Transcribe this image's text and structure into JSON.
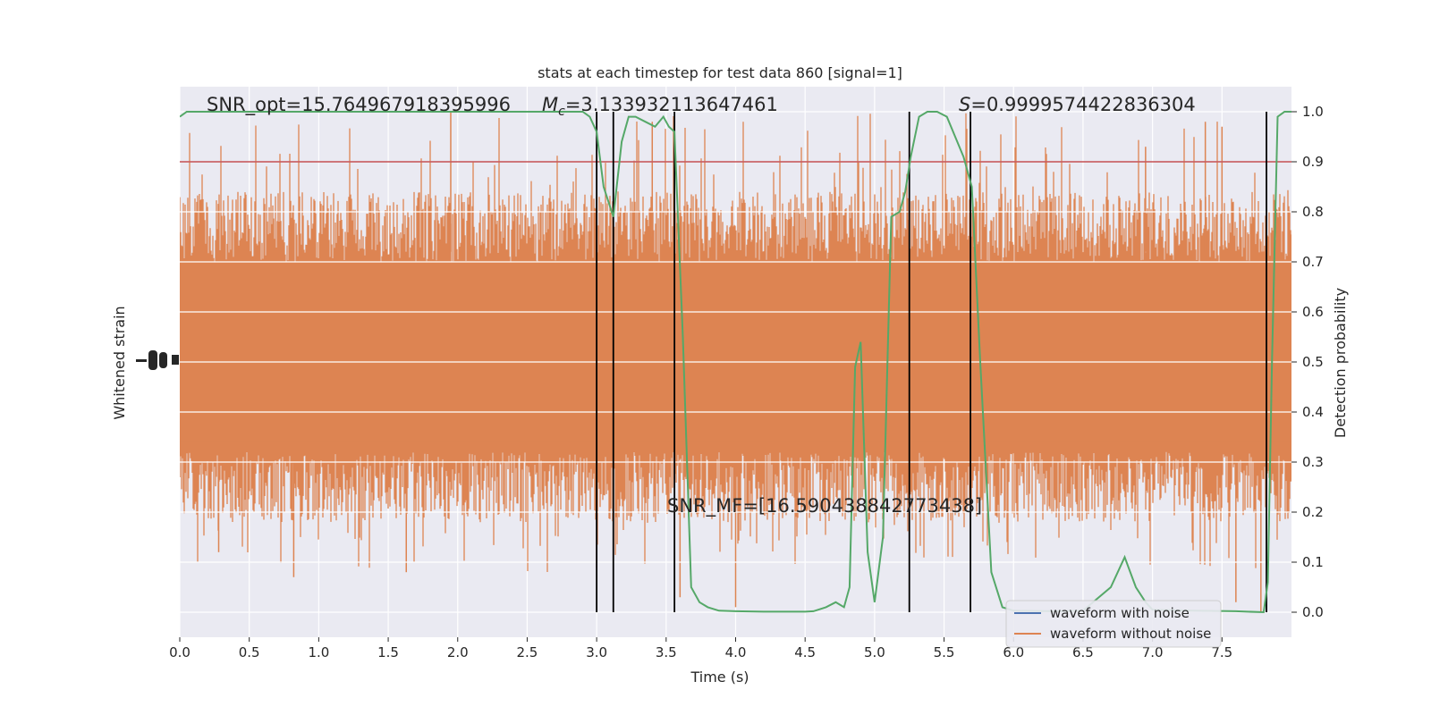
{
  "chart_data": {
    "type": "line",
    "title": "stats at each timestep for test data 860 [signal=1]",
    "xlabel": "Time (s)",
    "ylabel_left": "Whitened strain",
    "ylabel_right": "Detection probability",
    "xlim": [
      0,
      8.0
    ],
    "ylim_right": [
      -0.05,
      1.05
    ],
    "x_ticks": [
      "0.0",
      "0.5",
      "1.0",
      "1.5",
      "2.0",
      "2.5",
      "3.0",
      "3.5",
      "4.0",
      "4.5",
      "5.0",
      "5.5",
      "6.0",
      "6.5",
      "7.0",
      "7.5"
    ],
    "x_tick_values": [
      0,
      0.5,
      1.0,
      1.5,
      2.0,
      2.5,
      3.0,
      3.5,
      4.0,
      4.5,
      5.0,
      5.5,
      6.0,
      6.5,
      7.0,
      7.5
    ],
    "right_ticks": [
      "0.0",
      "0.1",
      "0.2",
      "0.3",
      "0.4",
      "0.5",
      "0.6",
      "0.7",
      "0.8",
      "0.9",
      "1.0"
    ],
    "right_tick_values": [
      0,
      0.1,
      0.2,
      0.3,
      0.4,
      0.5,
      0.6,
      0.7,
      0.8,
      0.9,
      1.0
    ],
    "annotations": {
      "snr_opt": "SNR_opt=15.764967918395996",
      "mc_symbol": "M",
      "mc_subscript": "c",
      "mc_value": "=3.133932113647461",
      "s_symbol": "S",
      "s_value": "=0.9999574422836304",
      "snr_mf": "SNR_MF=[16.590438842773438]"
    },
    "legend": {
      "placement": "lower-right",
      "entries": [
        {
          "label": "waveform with noise",
          "color": "#4c72b0"
        },
        {
          "label": "waveform without noise",
          "color": "#dd8452"
        }
      ]
    },
    "threshold": {
      "value": 0.9,
      "color": "#c44e52"
    },
    "vertical_markers": [
      3.0,
      3.12,
      3.56,
      5.25,
      5.69,
      7.82
    ],
    "strain_band": {
      "description": "dense noisy whitened strain, roughly centered at 0.5 on probability axis",
      "color": "#dd8452",
      "core_low": 0.3,
      "core_high": 0.72,
      "spike_low": 0.01,
      "spike_high": 1.0
    },
    "series": [
      {
        "name": "Detection probability",
        "color": "#55a868",
        "x": [
          0.0,
          0.05,
          0.5,
          1.0,
          1.5,
          2.0,
          2.5,
          2.9,
          2.95,
          3.0,
          3.05,
          3.12,
          3.18,
          3.23,
          3.28,
          3.35,
          3.42,
          3.48,
          3.52,
          3.56,
          3.62,
          3.68,
          3.74,
          3.8,
          3.88,
          4.0,
          4.2,
          4.5,
          4.56,
          4.65,
          4.72,
          4.78,
          4.82,
          4.86,
          4.9,
          4.95,
          5.0,
          5.06,
          5.12,
          5.18,
          5.22,
          5.26,
          5.32,
          5.38,
          5.45,
          5.52,
          5.58,
          5.64,
          5.7,
          5.76,
          5.84,
          5.92,
          6.0,
          6.3,
          6.5,
          6.7,
          6.8,
          6.88,
          6.95,
          7.0,
          7.3,
          7.6,
          7.8,
          7.83,
          7.86,
          7.9,
          7.95,
          8.0
        ],
        "y": [
          0.99,
          1.0,
          1.0,
          1.0,
          1.0,
          1.0,
          1.0,
          1.0,
          0.99,
          0.96,
          0.85,
          0.79,
          0.94,
          0.99,
          0.99,
          0.98,
          0.97,
          0.99,
          0.97,
          0.96,
          0.55,
          0.05,
          0.02,
          0.01,
          0.003,
          0.002,
          0.001,
          0.001,
          0.002,
          0.01,
          0.02,
          0.01,
          0.05,
          0.49,
          0.54,
          0.12,
          0.02,
          0.15,
          0.79,
          0.8,
          0.84,
          0.91,
          0.99,
          1.0,
          1.0,
          0.99,
          0.95,
          0.91,
          0.85,
          0.5,
          0.08,
          0.01,
          0.003,
          0.002,
          0.003,
          0.05,
          0.11,
          0.05,
          0.02,
          0.005,
          0.003,
          0.002,
          0.0,
          0.06,
          0.5,
          0.99,
          1.0,
          1.0
        ]
      }
    ]
  }
}
